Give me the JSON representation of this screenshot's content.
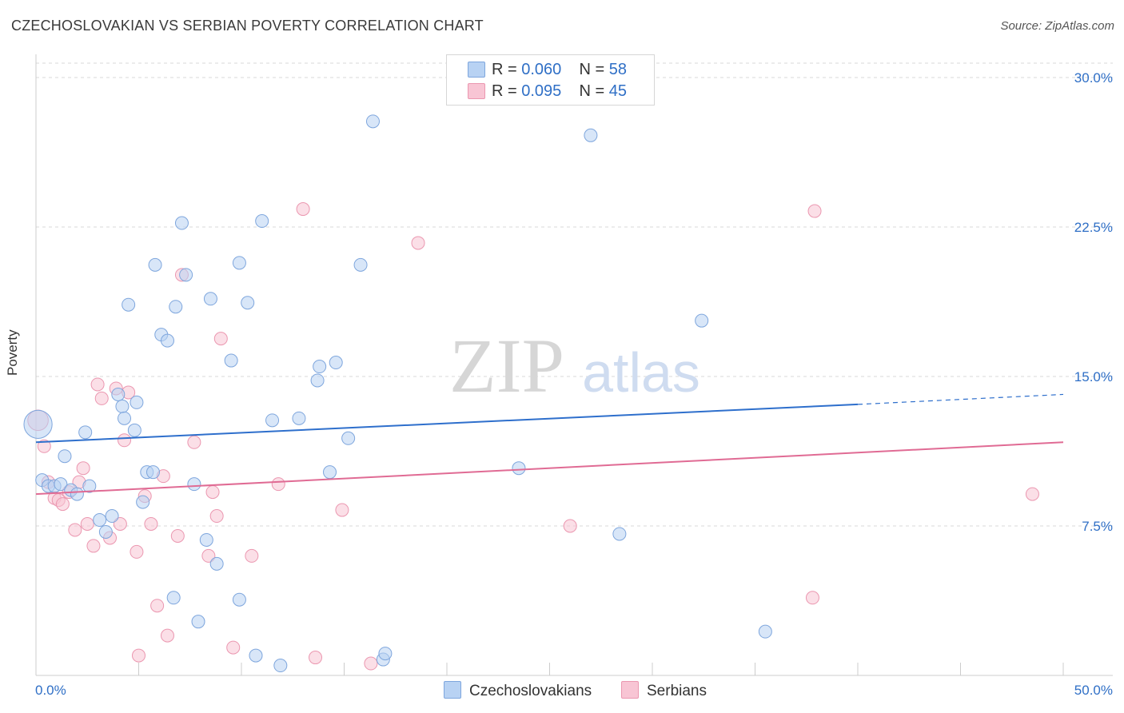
{
  "title": "CZECHOSLOVAKIAN VS SERBIAN POVERTY CORRELATION CHART",
  "source": "Source: ZipAtlas.com",
  "watermark": {
    "zip": "ZIP",
    "atlas": "atlas"
  },
  "legend": {
    "rows": [
      {
        "r_label": "R =",
        "r_value": "0.060",
        "n_label": "N =",
        "n_value": "58"
      },
      {
        "r_label": "R =",
        "r_value": "0.095",
        "n_label": "N =",
        "n_value": "45"
      }
    ]
  },
  "colors": {
    "blue_fill": "#b8d2f3",
    "blue_stroke": "#7ea6dd",
    "blue_line": "#2e6fcc",
    "pink_fill": "#f8c5d4",
    "pink_stroke": "#eb97b0",
    "pink_line": "#e06b94",
    "tick_label": "#2f6fc6",
    "grid": "#d9d9d9"
  },
  "chart_data": {
    "type": "scatter",
    "title": "CZECHOSLOVAKIAN VS SERBIAN POVERTY CORRELATION CHART",
    "xlabel": "",
    "ylabel": "Poverty",
    "xlim": [
      0,
      50
    ],
    "ylim": [
      0,
      30.5
    ],
    "x_tick_labels": [
      "0.0%",
      "50.0%"
    ],
    "y_ticks": [
      7.5,
      15.0,
      22.5,
      30.0
    ],
    "y_tick_labels": [
      "7.5%",
      "15.0%",
      "22.5%",
      "30.0%"
    ],
    "grid": true,
    "legend_position": "bottom",
    "series": [
      {
        "name": "Czechoslovakians",
        "r": 0.06,
        "n": 58,
        "trend": {
          "x0": 0,
          "y0": 11.7,
          "x1": 40,
          "y1": 13.6,
          "dashed_to_x": 50,
          "dashed_to_y": 14.1
        },
        "points": [
          [
            0.1,
            12.6,
            2.2
          ],
          [
            0.3,
            9.8,
            1
          ],
          [
            0.6,
            9.5,
            1
          ],
          [
            0.9,
            9.5,
            1
          ],
          [
            1.2,
            9.6,
            1
          ],
          [
            1.4,
            11.0,
            1
          ],
          [
            1.7,
            9.3,
            1
          ],
          [
            2.0,
            9.1,
            1
          ],
          [
            2.4,
            12.2,
            1
          ],
          [
            2.6,
            9.5,
            1
          ],
          [
            3.1,
            7.8,
            1
          ],
          [
            3.4,
            7.2,
            1
          ],
          [
            3.7,
            8.0,
            1
          ],
          [
            4.0,
            14.1,
            1
          ],
          [
            4.2,
            13.5,
            1
          ],
          [
            4.3,
            12.9,
            1
          ],
          [
            4.5,
            18.6,
            1
          ],
          [
            4.8,
            12.3,
            1
          ],
          [
            4.9,
            13.7,
            1
          ],
          [
            5.2,
            8.7,
            1
          ],
          [
            5.4,
            10.2,
            1
          ],
          [
            5.7,
            10.2,
            1
          ],
          [
            5.8,
            20.6,
            1
          ],
          [
            6.1,
            17.1,
            1
          ],
          [
            6.4,
            16.8,
            1
          ],
          [
            6.7,
            3.9,
            1
          ],
          [
            6.8,
            18.5,
            1
          ],
          [
            7.1,
            22.7,
            1
          ],
          [
            7.3,
            20.1,
            1
          ],
          [
            7.7,
            9.6,
            1
          ],
          [
            7.9,
            2.7,
            1
          ],
          [
            8.3,
            6.8,
            1
          ],
          [
            8.5,
            18.9,
            1
          ],
          [
            8.8,
            5.6,
            1
          ],
          [
            9.5,
            15.8,
            1
          ],
          [
            9.9,
            20.7,
            1
          ],
          [
            9.9,
            3.8,
            1
          ],
          [
            10.3,
            18.7,
            1
          ],
          [
            10.7,
            1.0,
            1
          ],
          [
            11.0,
            22.8,
            1
          ],
          [
            11.5,
            12.8,
            1
          ],
          [
            11.9,
            0.5,
            1
          ],
          [
            12.8,
            12.9,
            1
          ],
          [
            13.7,
            14.8,
            1
          ],
          [
            13.8,
            15.5,
            1
          ],
          [
            14.3,
            10.2,
            1
          ],
          [
            14.6,
            15.7,
            1
          ],
          [
            15.2,
            11.9,
            1
          ],
          [
            15.8,
            20.6,
            1
          ],
          [
            16.4,
            27.8,
            1
          ],
          [
            16.9,
            0.8,
            1
          ],
          [
            17.0,
            1.1,
            1
          ],
          [
            23.5,
            10.4,
            1
          ],
          [
            27.0,
            27.1,
            1
          ],
          [
            28.4,
            7.1,
            1
          ],
          [
            32.4,
            17.8,
            1
          ],
          [
            35.5,
            2.2,
            1
          ],
          [
            36.0,
            17.0,
            0
          ]
        ]
      },
      {
        "name": "Serbians",
        "r": 0.095,
        "n": 45,
        "trend": {
          "x0": 0,
          "y0": 9.1,
          "x1": 50,
          "y1": 11.7
        },
        "points": [
          [
            0.1,
            12.8,
            1.6
          ],
          [
            0.4,
            11.5,
            1
          ],
          [
            0.6,
            9.7,
            1
          ],
          [
            0.9,
            8.9,
            1
          ],
          [
            1.1,
            8.8,
            1
          ],
          [
            1.3,
            8.6,
            1
          ],
          [
            1.6,
            9.2,
            1
          ],
          [
            1.9,
            7.3,
            1
          ],
          [
            2.1,
            9.7,
            1
          ],
          [
            2.3,
            10.4,
            1
          ],
          [
            2.5,
            7.6,
            1
          ],
          [
            2.8,
            6.5,
            1
          ],
          [
            3.0,
            14.6,
            1
          ],
          [
            3.2,
            13.9,
            1
          ],
          [
            3.6,
            6.9,
            1
          ],
          [
            3.9,
            14.4,
            1
          ],
          [
            4.1,
            7.6,
            1
          ],
          [
            4.3,
            11.8,
            1
          ],
          [
            4.5,
            14.2,
            1
          ],
          [
            4.9,
            6.2,
            1
          ],
          [
            5.0,
            1.0,
            1
          ],
          [
            5.3,
            9.0,
            1
          ],
          [
            5.6,
            7.6,
            1
          ],
          [
            5.9,
            3.5,
            1
          ],
          [
            6.2,
            10.0,
            1
          ],
          [
            6.4,
            2.0,
            1
          ],
          [
            6.9,
            7.0,
            1
          ],
          [
            7.1,
            20.1,
            1
          ],
          [
            7.7,
            11.7,
            1
          ],
          [
            8.4,
            6.0,
            1
          ],
          [
            8.6,
            9.2,
            1
          ],
          [
            8.8,
            8.0,
            1
          ],
          [
            9.0,
            16.9,
            1
          ],
          [
            9.6,
            1.4,
            1
          ],
          [
            10.5,
            6.0,
            1
          ],
          [
            11.8,
            9.6,
            1
          ],
          [
            13.0,
            23.4,
            1
          ],
          [
            13.6,
            0.9,
            1
          ],
          [
            14.9,
            8.3,
            1
          ],
          [
            16.3,
            0.6,
            1
          ],
          [
            18.6,
            21.7,
            1
          ],
          [
            26.0,
            7.5,
            1
          ],
          [
            37.8,
            3.9,
            1
          ],
          [
            37.9,
            23.3,
            1
          ],
          [
            48.5,
            9.1,
            1
          ]
        ]
      }
    ]
  }
}
